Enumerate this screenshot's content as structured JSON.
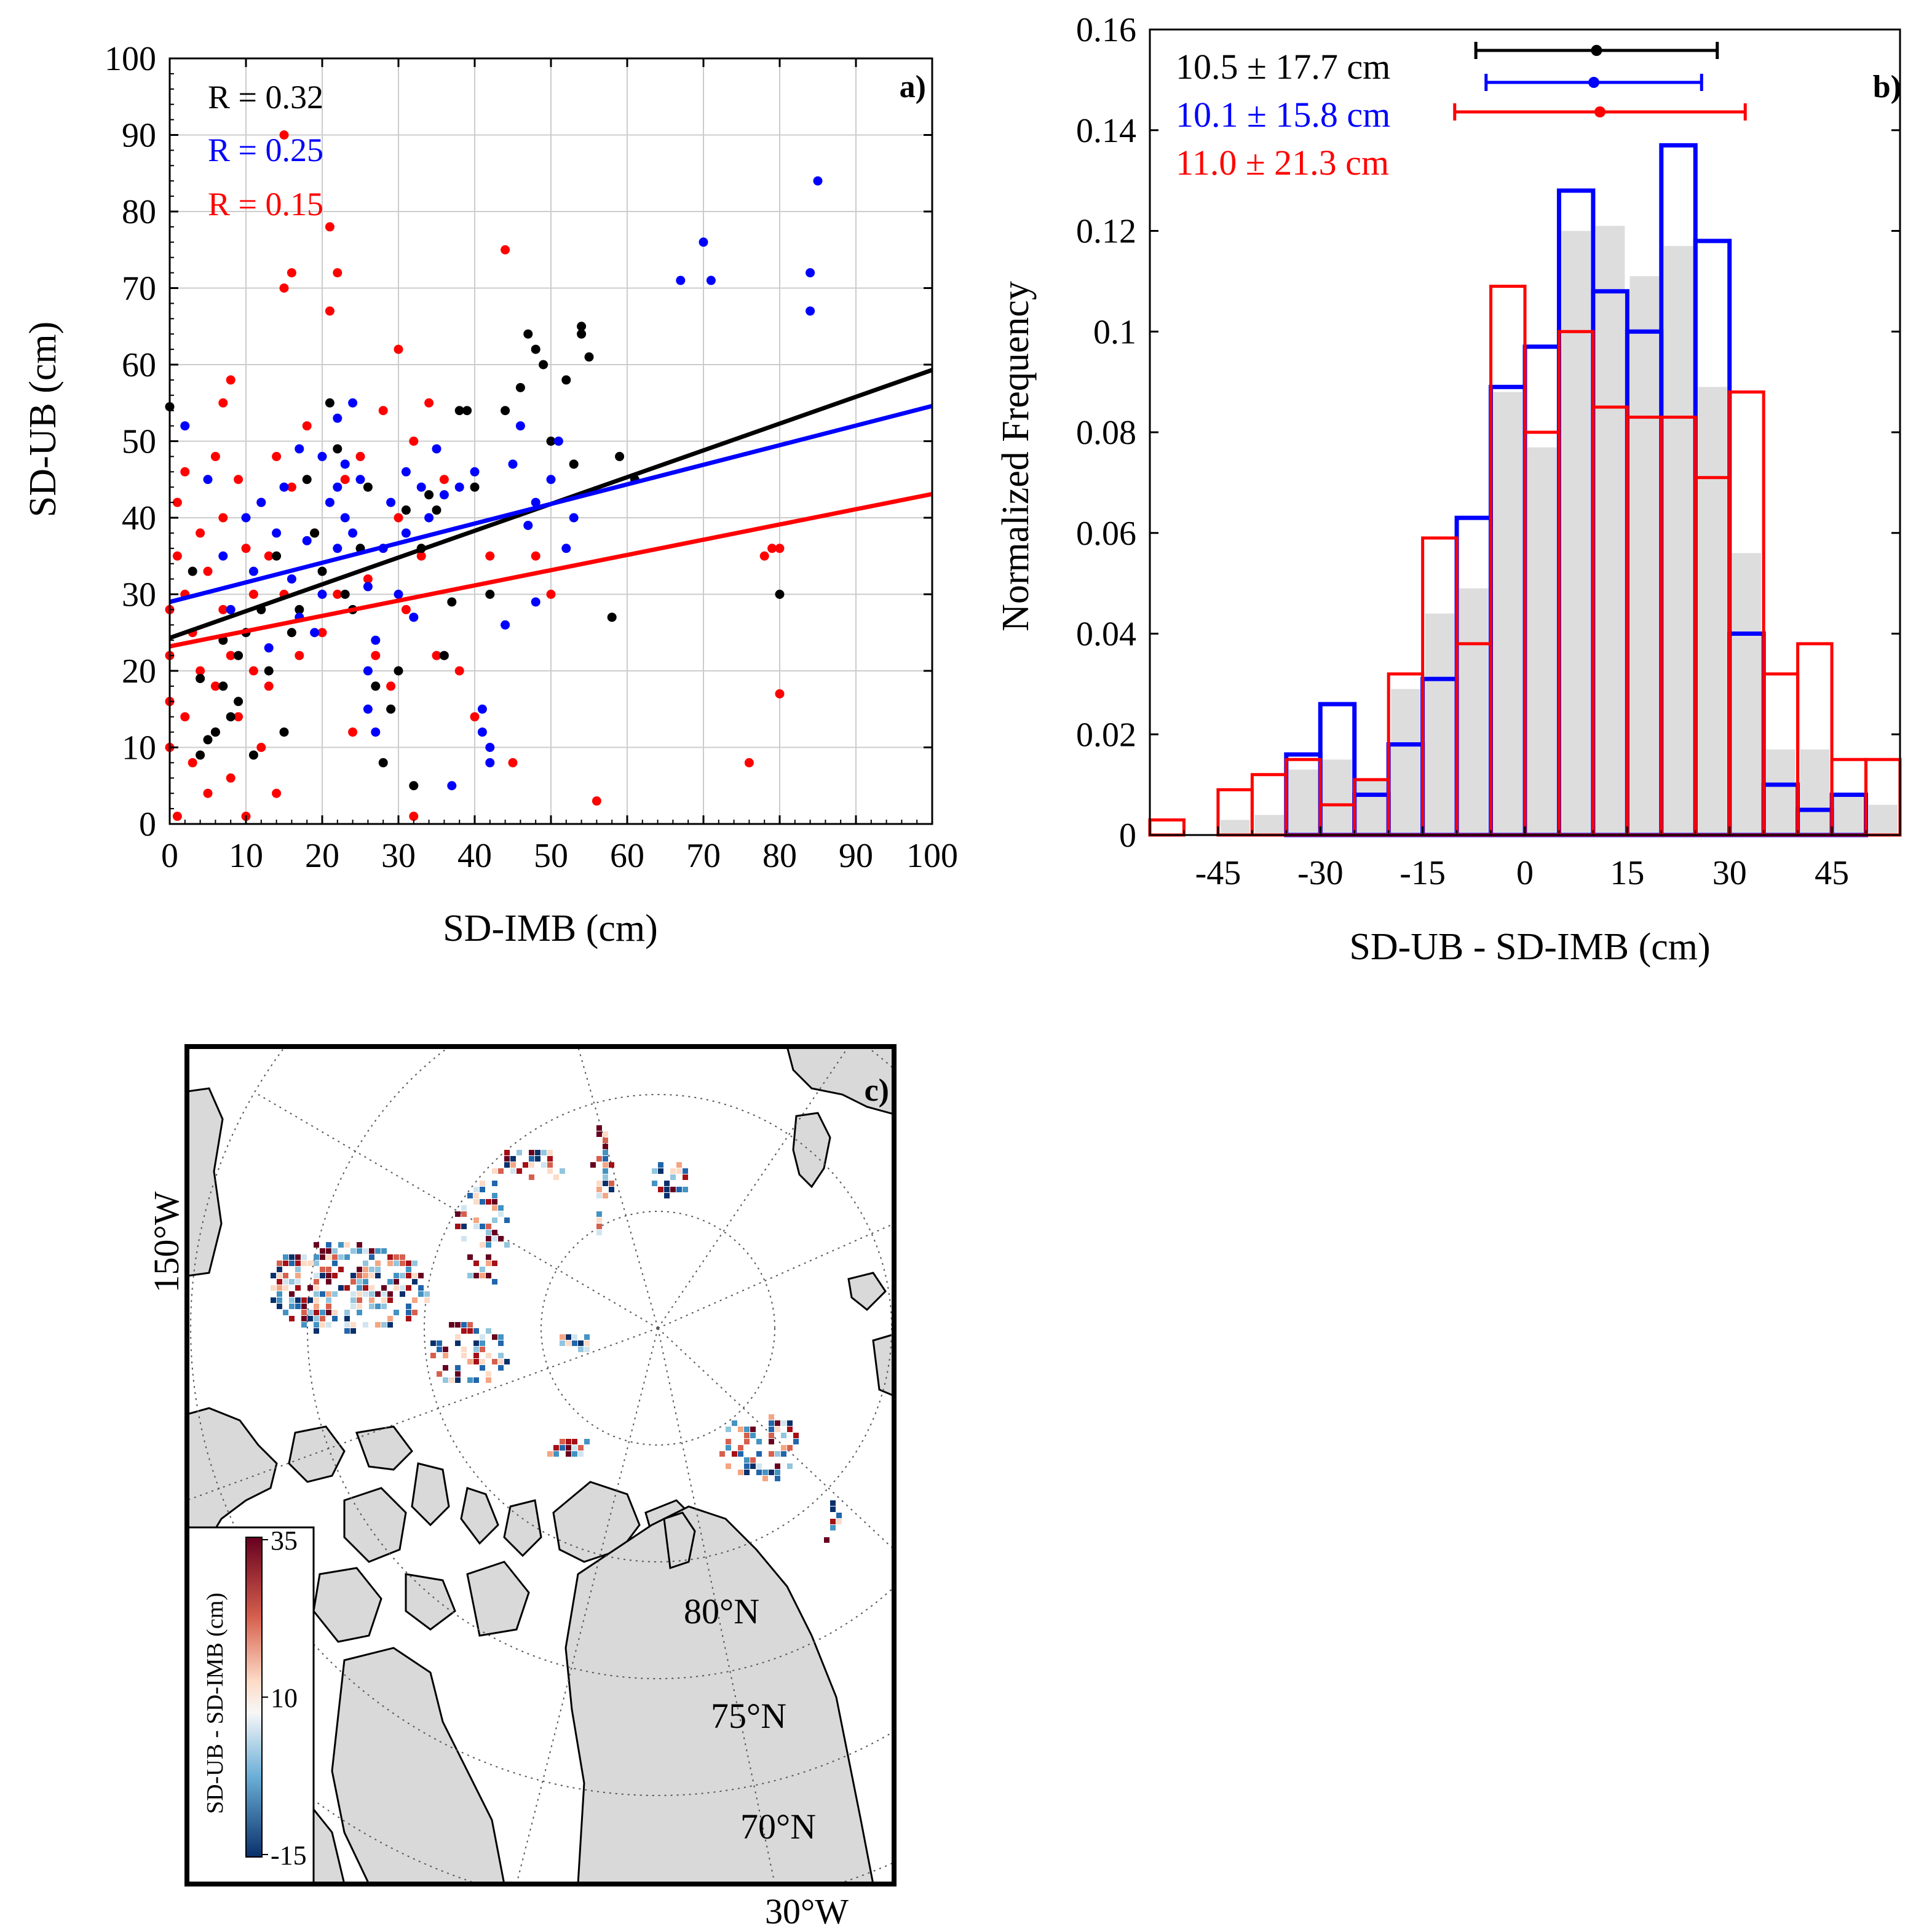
{
  "chart_data": [
    {
      "panel": "a)",
      "type": "scatter",
      "xlabel": "SD-IMB (cm)",
      "ylabel": "SD-UB (cm)",
      "xlim": [
        0,
        100
      ],
      "ylim": [
        0,
        100
      ],
      "xticks": [
        "0",
        "10",
        "20",
        "30",
        "40",
        "50",
        "60",
        "70",
        "80",
        "90",
        "100"
      ],
      "yticks": [
        "0",
        "10",
        "20",
        "30",
        "40",
        "50",
        "60",
        "70",
        "80",
        "90",
        "100"
      ],
      "grid": true,
      "annotations": [
        {
          "text": "R = 0.32",
          "color": "#000000"
        },
        {
          "text": "R = 0.25",
          "color": "#0000ff"
        },
        {
          "text": "R = 0.15",
          "color": "#ff0000"
        }
      ],
      "series": [
        {
          "name": "black",
          "color": "#000000",
          "fit": {
            "x": [
              0,
              100
            ],
            "y": [
              24.3,
              59.3
            ]
          },
          "points": [
            [
              0,
              54.5
            ],
            [
              3,
              33
            ],
            [
              4,
              19
            ],
            [
              4,
              9
            ],
            [
              5,
              11
            ],
            [
              6,
              12
            ],
            [
              7,
              24
            ],
            [
              7,
              18
            ],
            [
              8,
              14
            ],
            [
              9,
              22
            ],
            [
              9,
              16
            ],
            [
              10,
              25
            ],
            [
              11,
              9
            ],
            [
              12,
              28
            ],
            [
              13,
              20
            ],
            [
              14,
              35
            ],
            [
              15,
              12
            ],
            [
              16,
              25
            ],
            [
              17,
              28
            ],
            [
              18,
              45
            ],
            [
              19,
              38
            ],
            [
              20,
              33
            ],
            [
              21,
              55
            ],
            [
              22,
              49
            ],
            [
              23,
              30
            ],
            [
              24,
              28
            ],
            [
              25,
              36
            ],
            [
              26,
              44
            ],
            [
              27,
              18
            ],
            [
              28,
              8
            ],
            [
              29,
              15
            ],
            [
              30,
              20
            ],
            [
              31,
              41
            ],
            [
              32,
              5
            ],
            [
              33,
              36
            ],
            [
              34,
              43
            ],
            [
              35,
              41
            ],
            [
              36,
              22
            ],
            [
              37,
              29
            ],
            [
              38,
              54
            ],
            [
              39,
              54
            ],
            [
              40,
              44
            ],
            [
              42,
              30
            ],
            [
              44,
              54
            ],
            [
              46,
              57
            ],
            [
              47,
              64
            ],
            [
              48,
              62
            ],
            [
              49,
              60
            ],
            [
              50,
              50
            ],
            [
              52,
              58
            ],
            [
              53,
              47
            ],
            [
              54,
              65
            ],
            [
              54,
              64
            ],
            [
              55,
              61
            ],
            [
              58,
              27
            ],
            [
              59,
              48
            ],
            [
              61,
              45
            ],
            [
              80,
              30
            ]
          ]
        },
        {
          "name": "blue",
          "color": "#0000ff",
          "fit": {
            "x": [
              0,
              100
            ],
            "y": [
              29,
              54.6
            ]
          },
          "points": [
            [
              2,
              52
            ],
            [
              5,
              45
            ],
            [
              7,
              35
            ],
            [
              8,
              28
            ],
            [
              10,
              40
            ],
            [
              11,
              33
            ],
            [
              12,
              42
            ],
            [
              13,
              23
            ],
            [
              14,
              38
            ],
            [
              15,
              44
            ],
            [
              16,
              32
            ],
            [
              17,
              27
            ],
            [
              17,
              49
            ],
            [
              18,
              37
            ],
            [
              19,
              25
            ],
            [
              20,
              48
            ],
            [
              20,
              30
            ],
            [
              21,
              42
            ],
            [
              22,
              53
            ],
            [
              22,
              44
            ],
            [
              22,
              36
            ],
            [
              23,
              47
            ],
            [
              23,
              40
            ],
            [
              24,
              55
            ],
            [
              24,
              38
            ],
            [
              25,
              45
            ],
            [
              26,
              20
            ],
            [
              26,
              31
            ],
            [
              26,
              15
            ],
            [
              27,
              24
            ],
            [
              27,
              12
            ],
            [
              28,
              36
            ],
            [
              29,
              42
            ],
            [
              30,
              30
            ],
            [
              31,
              46
            ],
            [
              31,
              38
            ],
            [
              32,
              27
            ],
            [
              33,
              44
            ],
            [
              34,
              40
            ],
            [
              35,
              49
            ],
            [
              36,
              43
            ],
            [
              37,
              5
            ],
            [
              38,
              44
            ],
            [
              40,
              46
            ],
            [
              41,
              15
            ],
            [
              41,
              12
            ],
            [
              42,
              10
            ],
            [
              42,
              8
            ],
            [
              44,
              26
            ],
            [
              45,
              47
            ],
            [
              46,
              52
            ],
            [
              47,
              39
            ],
            [
              48,
              42
            ],
            [
              48,
              29
            ],
            [
              50,
              45
            ],
            [
              51,
              50
            ],
            [
              52,
              36
            ],
            [
              53,
              40
            ],
            [
              67,
              71
            ],
            [
              70,
              76
            ],
            [
              71,
              71
            ],
            [
              84,
              72
            ],
            [
              84,
              67
            ],
            [
              85,
              84
            ]
          ]
        },
        {
          "name": "red",
          "color": "#ff0000",
          "fit": {
            "x": [
              0,
              100
            ],
            "y": [
              23.2,
              43.1
            ]
          },
          "points": [
            [
              0,
              28
            ],
            [
              0,
              22
            ],
            [
              0,
              16
            ],
            [
              0,
              10
            ],
            [
              1,
              1
            ],
            [
              1,
              35
            ],
            [
              1,
              42
            ],
            [
              2,
              46
            ],
            [
              2,
              30
            ],
            [
              2,
              14
            ],
            [
              3,
              8
            ],
            [
              3,
              25
            ],
            [
              4,
              38
            ],
            [
              4,
              20
            ],
            [
              5,
              4
            ],
            [
              5,
              33
            ],
            [
              6,
              48
            ],
            [
              6,
              18
            ],
            [
              6,
              12
            ],
            [
              7,
              55
            ],
            [
              7,
              40
            ],
            [
              7,
              28
            ],
            [
              8,
              58
            ],
            [
              8,
              22
            ],
            [
              8,
              6
            ],
            [
              9,
              45
            ],
            [
              9,
              14
            ],
            [
              10,
              36
            ],
            [
              10,
              1
            ],
            [
              11,
              30
            ],
            [
              11,
              20
            ],
            [
              12,
              42
            ],
            [
              12,
              10
            ],
            [
              13,
              35
            ],
            [
              13,
              18
            ],
            [
              14,
              48
            ],
            [
              14,
              4
            ],
            [
              15,
              90
            ],
            [
              15,
              70
            ],
            [
              15,
              30
            ],
            [
              16,
              72
            ],
            [
              16,
              44
            ],
            [
              17,
              22
            ],
            [
              18,
              52
            ],
            [
              19,
              38
            ],
            [
              20,
              25
            ],
            [
              21,
              67
            ],
            [
              21,
              78
            ],
            [
              22,
              72
            ],
            [
              22,
              30
            ],
            [
              23,
              45
            ],
            [
              24,
              12
            ],
            [
              25,
              48
            ],
            [
              26,
              32
            ],
            [
              27,
              22
            ],
            [
              28,
              54
            ],
            [
              29,
              18
            ],
            [
              30,
              40
            ],
            [
              30,
              62
            ],
            [
              31,
              28
            ],
            [
              32,
              1
            ],
            [
              32,
              50
            ],
            [
              33,
              35
            ],
            [
              34,
              55
            ],
            [
              35,
              22
            ],
            [
              36,
              45
            ],
            [
              38,
              20
            ],
            [
              40,
              14
            ],
            [
              42,
              35
            ],
            [
              44,
              75
            ],
            [
              45,
              8
            ],
            [
              48,
              35
            ],
            [
              50,
              30
            ],
            [
              56,
              3
            ],
            [
              76,
              8
            ],
            [
              78,
              35
            ],
            [
              79,
              36
            ],
            [
              80,
              36
            ],
            [
              80,
              17
            ]
          ]
        }
      ]
    },
    {
      "panel": "b)",
      "type": "bar",
      "subtype": "histogram",
      "xlabel": "SD-UB - SD-IMB (cm)",
      "ylabel": "Normalized Frequency",
      "xlim": [
        -55,
        55
      ],
      "ylim": [
        0,
        0.16
      ],
      "xticks": [
        "-45",
        "-30",
        "-15",
        "0",
        "15",
        "30",
        "45"
      ],
      "yticks": [
        "0",
        "0.02",
        "0.04",
        "0.06",
        "0.08",
        "0.1",
        "0.12",
        "0.14",
        "0.16"
      ],
      "bin_edges": [
        -55,
        -50,
        -45,
        -40,
        -35,
        -30,
        -25,
        -20,
        -15,
        -10,
        -5,
        0,
        5,
        10,
        15,
        20,
        25,
        30,
        35,
        40,
        45,
        50,
        55
      ],
      "series": [
        {
          "name": "all",
          "color": "#dddddd",
          "style": "filled",
          "values": [
            0,
            0,
            0.003,
            0.004,
            0.013,
            0.015,
            0.011,
            0.029,
            0.044,
            0.049,
            0.088,
            0.077,
            0.12,
            0.121,
            0.111,
            0.117,
            0.089,
            0.056,
            0.017,
            0.017,
            0.008,
            0.006
          ]
        },
        {
          "name": "blue",
          "color": "#0000ff",
          "style": "outline",
          "values": [
            0,
            0,
            0,
            0,
            0.016,
            0.026,
            0.008,
            0.018,
            0.031,
            0.063,
            0.089,
            0.097,
            0.128,
            0.108,
            0.1,
            0.137,
            0.118,
            0.04,
            0.01,
            0.005,
            0.008,
            0
          ]
        },
        {
          "name": "red",
          "color": "#ff0000",
          "style": "outline",
          "values": [
            0.003,
            0,
            0.009,
            0.012,
            0.015,
            0.006,
            0.011,
            0.032,
            0.059,
            0.038,
            0.109,
            0.08,
            0.1,
            0.085,
            0.083,
            0.083,
            0.071,
            0.088,
            0.032,
            0.038,
            0.015,
            0.015
          ]
        }
      ],
      "errorbars": [
        {
          "label": "10.5 ± 17.7 cm",
          "color": "#000000",
          "mean": 10.5,
          "sd": 17.7
        },
        {
          "label": "10.1 ± 15.8 cm",
          "color": "#0000ff",
          "mean": 10.1,
          "sd": 15.8
        },
        {
          "label": "11.0 ± 21.3 cm",
          "color": "#ff0000",
          "mean": 11.0,
          "sd": 21.3
        }
      ]
    },
    {
      "panel": "c)",
      "type": "heatmap",
      "subtype": "polar map",
      "labels": {
        "lon_left": "150°W",
        "lon_bottom": "30°W",
        "lat1": "80°N",
        "lat2": "75°N",
        "lat3": "70°N"
      },
      "colorbar": {
        "label": "SD-UB - SD-IMB (cm)",
        "ticks": [
          "35",
          "10",
          "-15"
        ]
      }
    }
  ]
}
